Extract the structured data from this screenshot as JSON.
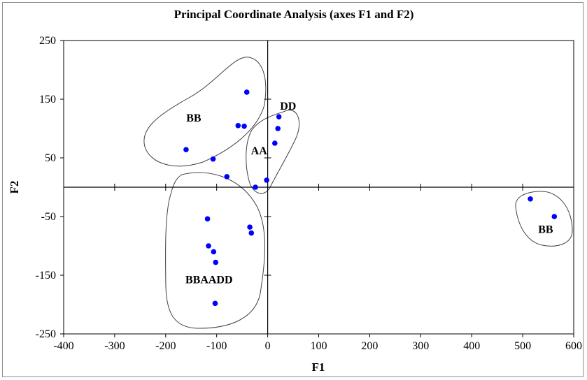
{
  "chart_data": {
    "type": "scatter",
    "title": "Principal Coordinate Analysis (axes F1 and F2)",
    "xlabel": "F1",
    "ylabel": "F2",
    "xlim": [
      -400,
      600
    ],
    "ylim": [
      -250,
      250
    ],
    "x_ticks": [
      -400,
      -300,
      -200,
      -100,
      0,
      100,
      200,
      300,
      400,
      500,
      600
    ],
    "y_ticks": [
      -250,
      -150,
      -50,
      50,
      150,
      250
    ],
    "grid": false,
    "legend": "none",
    "point_color": "#0000ff",
    "series": [
      {
        "values": [
          {
            "x": -41,
            "y": 162
          },
          {
            "x": -58,
            "y": 105
          },
          {
            "x": -46,
            "y": 104
          },
          {
            "x": -160,
            "y": 64
          },
          {
            "x": -107,
            "y": 48
          },
          {
            "x": -80,
            "y": 18
          },
          {
            "x": 22,
            "y": 120
          },
          {
            "x": 20,
            "y": 100
          },
          {
            "x": 14,
            "y": 75
          },
          {
            "x": -2,
            "y": 12
          },
          {
            "x": -24,
            "y": 0
          },
          {
            "x": -118,
            "y": -54
          },
          {
            "x": -35,
            "y": -68
          },
          {
            "x": -32,
            "y": -78
          },
          {
            "x": -116,
            "y": -100
          },
          {
            "x": -106,
            "y": -110
          },
          {
            "x": -102,
            "y": -128
          },
          {
            "x": -103,
            "y": -198
          },
          {
            "x": 515,
            "y": -20
          },
          {
            "x": 562,
            "y": -50
          }
        ]
      }
    ],
    "annotations": [
      {
        "text": "BB",
        "x": -145,
        "y": 118
      },
      {
        "text": "DD",
        "x": 40,
        "y": 138
      },
      {
        "text": "AA",
        "x": -17,
        "y": 62
      },
      {
        "text": "BBAADD",
        "x": -115,
        "y": -158
      },
      {
        "text": "BB",
        "x": 545,
        "y": -72
      }
    ]
  }
}
